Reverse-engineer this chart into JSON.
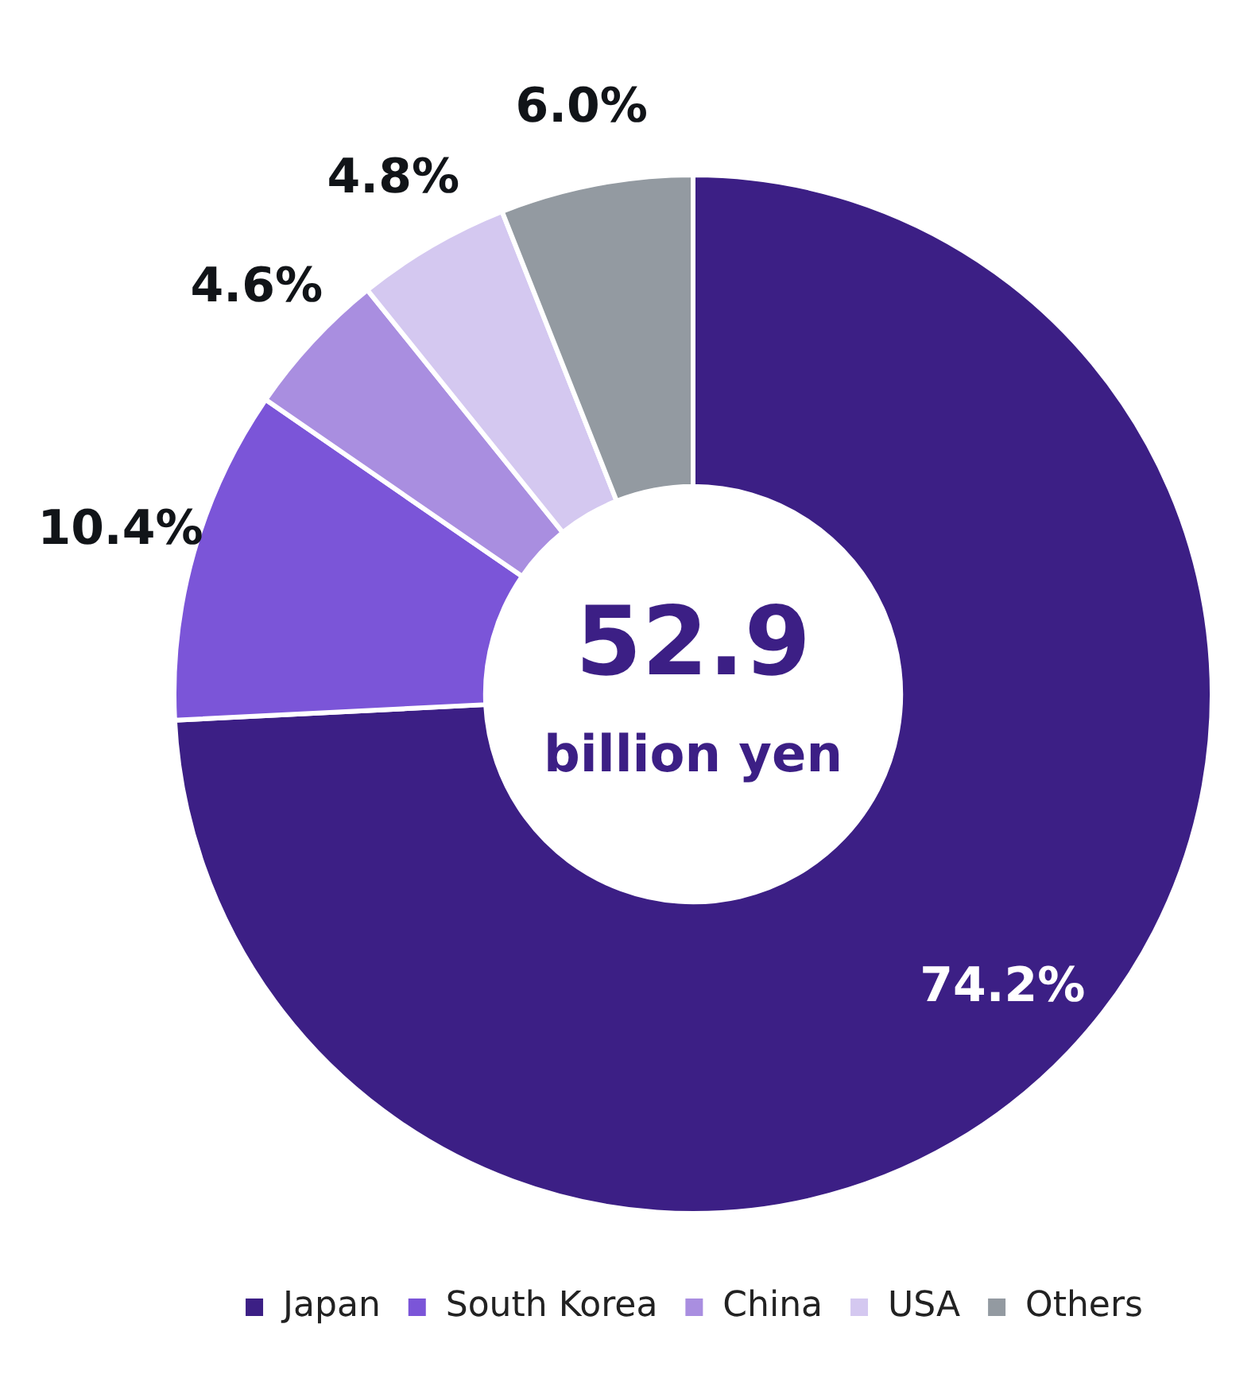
{
  "chart_data": {
    "type": "donut",
    "categories": [
      "Japan",
      "South Korea",
      "China",
      "USA",
      "Others"
    ],
    "values": [
      74.2,
      10.4,
      4.6,
      4.8,
      6.0
    ],
    "colors": [
      "#3c1f85",
      "#7b55d8",
      "#a98ee0",
      "#d4c8f0",
      "#939aa1"
    ],
    "value_labels": [
      "74.2%",
      "10.4%",
      "4.6%",
      "4.8%",
      "6.0%"
    ],
    "annotations": [
      "52.9",
      "billion yen"
    ],
    "legend": "bottom"
  }
}
